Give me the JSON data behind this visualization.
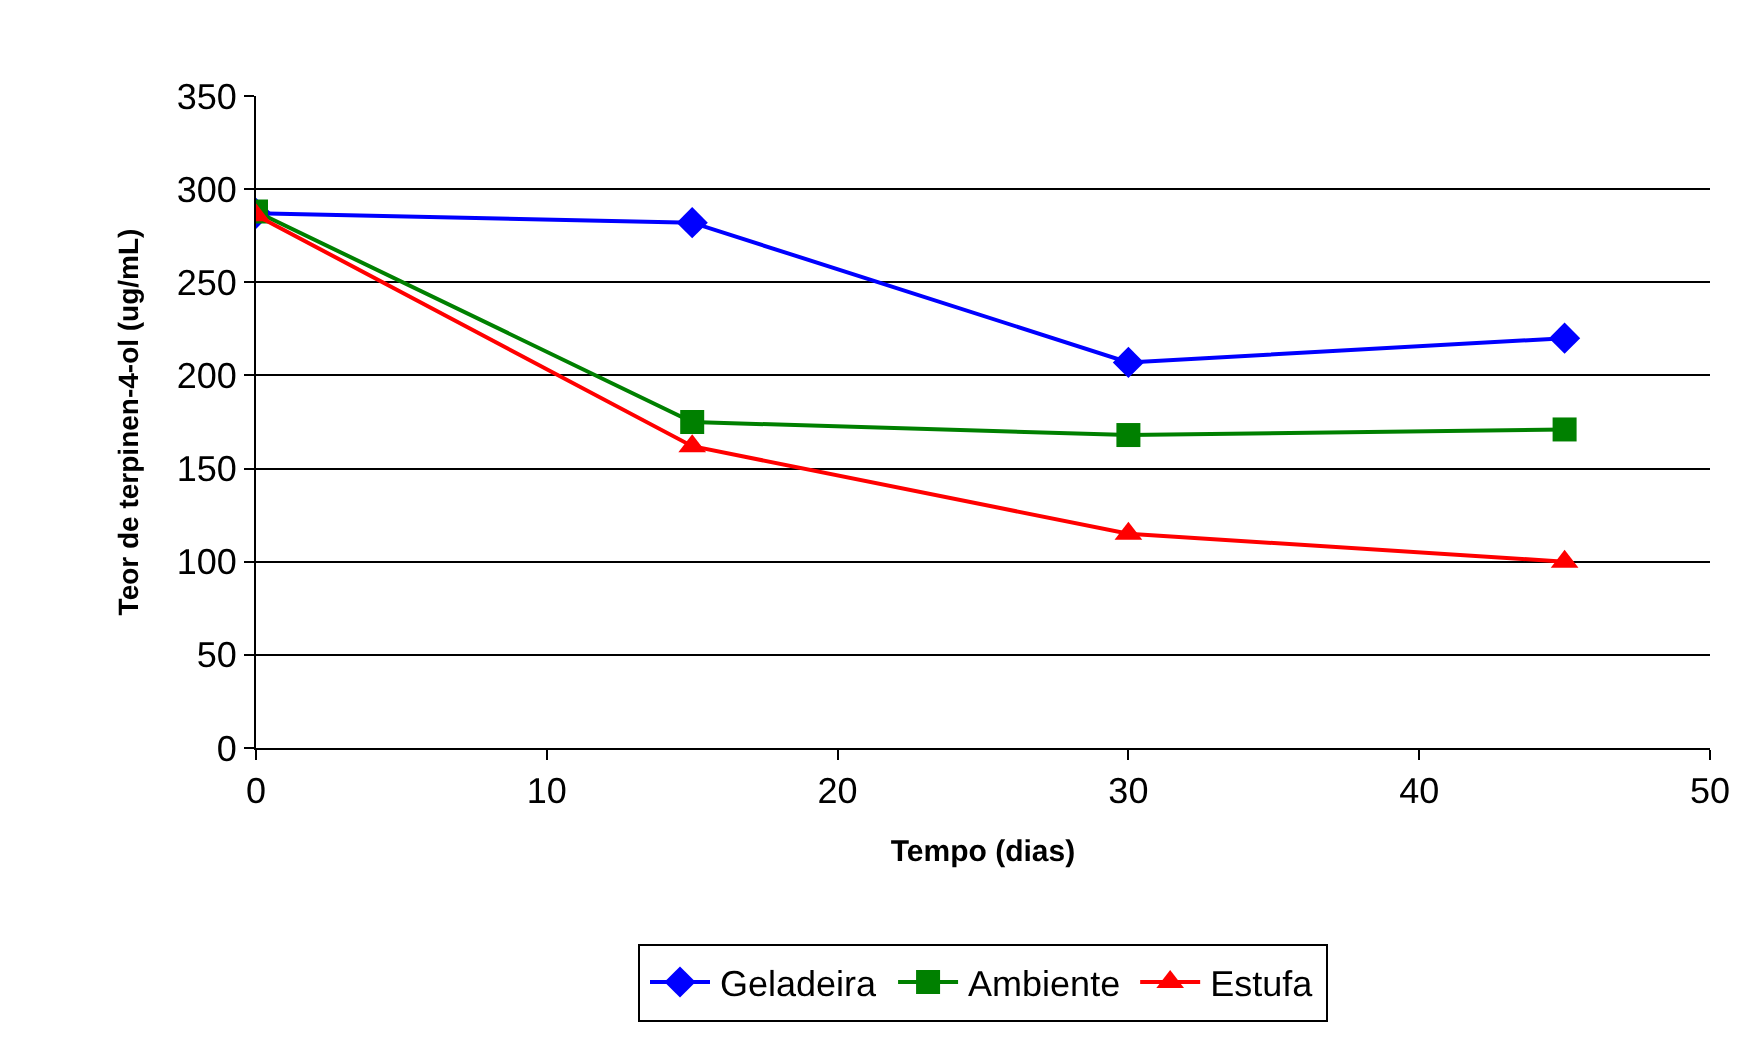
{
  "chart_data": {
    "type": "line",
    "xlabel": "Tempo (dias)",
    "ylabel": "Teor de terpinen-4-ol (ug/mL)",
    "x": [
      0,
      15,
      30,
      45
    ],
    "series": [
      {
        "name": "Geladeira",
        "color": "#0000ff",
        "marker": "diamond",
        "values": [
          287,
          282,
          207,
          220
        ]
      },
      {
        "name": "Ambiente",
        "color": "#008000",
        "marker": "square",
        "values": [
          288,
          175,
          168,
          171
        ]
      },
      {
        "name": "Estufa",
        "color": "#ff0000",
        "marker": "triangle",
        "values": [
          286,
          162,
          115,
          100
        ]
      }
    ],
    "xlim": [
      0,
      50
    ],
    "xticks": [
      0,
      10,
      20,
      30,
      40,
      50
    ],
    "ylim": [
      0,
      350
    ],
    "yticks": [
      0,
      50,
      100,
      150,
      200,
      250,
      300,
      350
    ],
    "grid": "y",
    "legend": "bottom",
    "line_style": "solid"
  }
}
